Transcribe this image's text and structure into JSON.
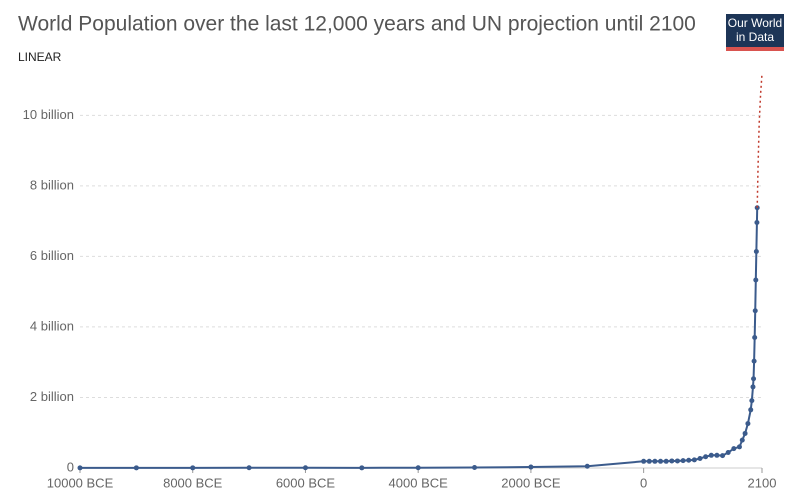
{
  "chart_data": {
    "type": "line",
    "title": "World Population over the last 12,000 years and UN projection until 2100",
    "scale_label": "LINEAR",
    "logo": [
      "Our World",
      "in Data"
    ],
    "xlim": [
      -10000,
      2100
    ],
    "xticks": [
      {
        "value": -10000,
        "label": "10000 BCE"
      },
      {
        "value": -8000,
        "label": "8000 BCE"
      },
      {
        "value": -6000,
        "label": "6000 BCE"
      },
      {
        "value": -4000,
        "label": "4000 BCE"
      },
      {
        "value": -2000,
        "label": "2000 BCE"
      },
      0,
      2100
    ],
    "ylim": [
      0,
      11.2
    ],
    "yticks": [
      0,
      {
        "value": 2,
        "label": "2 billion"
      },
      {
        "value": 4,
        "label": "4 billion"
      },
      {
        "value": 6,
        "label": "6 billion"
      },
      {
        "value": 8,
        "label": "8 billion"
      },
      {
        "value": 10,
        "label": "10 billion"
      }
    ],
    "grid": true,
    "series": [
      {
        "color": "#3b5b8c",
        "dashed": false,
        "markers": true,
        "x": [
          -10000,
          -9000,
          -8000,
          -7000,
          -6000,
          -5000,
          -4000,
          -3000,
          -2000,
          -1000,
          0,
          100,
          200,
          300,
          400,
          500,
          600,
          700,
          800,
          900,
          1000,
          1100,
          1200,
          1300,
          1400,
          1500,
          1600,
          1700,
          1750,
          1800,
          1850,
          1900,
          1920,
          1940,
          1950,
          1960,
          1970,
          1980,
          1990,
          2000,
          2010,
          2015
        ],
        "values": [
          0.004,
          0.005,
          0.005,
          0.007,
          0.007,
          0.005,
          0.007,
          0.014,
          0.027,
          0.05,
          0.19,
          0.19,
          0.19,
          0.19,
          0.19,
          0.2,
          0.2,
          0.21,
          0.22,
          0.23,
          0.27,
          0.32,
          0.36,
          0.36,
          0.35,
          0.44,
          0.55,
          0.6,
          0.79,
          0.98,
          1.26,
          1.65,
          1.91,
          2.3,
          2.53,
          3.03,
          3.7,
          4.46,
          5.33,
          6.14,
          6.96,
          7.38
        ]
      },
      {
        "color": "#c0392b",
        "dashed": true,
        "markers": false,
        "x": [
          2015,
          2030,
          2050,
          2075,
          2100
        ],
        "values": [
          7.38,
          8.55,
          9.77,
          10.6,
          11.18
        ]
      }
    ]
  }
}
